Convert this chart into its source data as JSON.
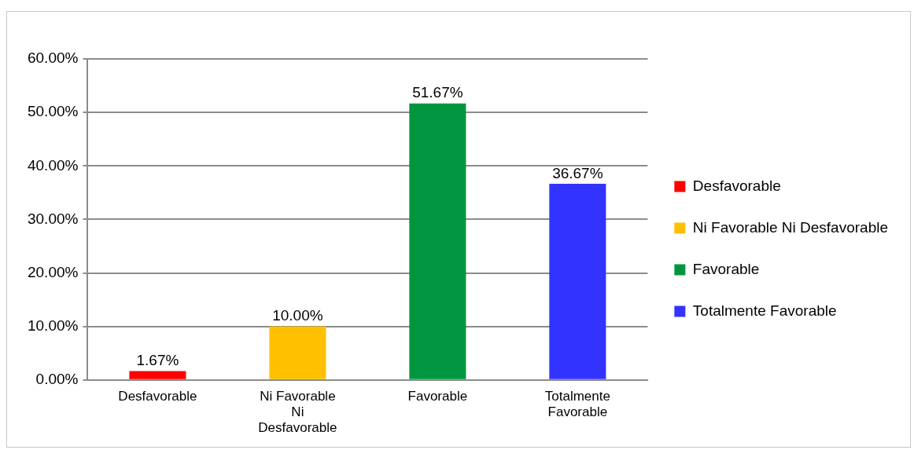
{
  "chart_data": {
    "type": "bar",
    "categories": [
      "Desfavorable",
      "Ni Favorable Ni Desfavorable",
      "Favorable",
      "Totalmente Favorable"
    ],
    "series": [
      {
        "name": "Desfavorable",
        "color": "#ff0000",
        "values": [
          1.67,
          null,
          null,
          null
        ],
        "value_labels": [
          "1.67%",
          null,
          null,
          null
        ]
      },
      {
        "name": "Ni Favorable Ni Desfavorable",
        "color": "#ffc000",
        "values": [
          null,
          10.0,
          null,
          null
        ],
        "value_labels": [
          null,
          "10.00%",
          null,
          null
        ]
      },
      {
        "name": "Favorable",
        "color": "#00963f",
        "values": [
          null,
          null,
          51.67,
          null
        ],
        "value_labels": [
          null,
          null,
          "51.67%",
          null
        ]
      },
      {
        "name": "Totalmente Favorable",
        "color": "#3333ff",
        "values": [
          null,
          null,
          null,
          36.67
        ],
        "value_labels": [
          null,
          null,
          null,
          "36.67%"
        ]
      }
    ],
    "ylim": [
      0,
      60
    ],
    "yticks": [
      {
        "value": 0,
        "label": "0.00%"
      },
      {
        "value": 10,
        "label": "10.00%"
      },
      {
        "value": 20,
        "label": "20.00%"
      },
      {
        "value": 30,
        "label": "30.00%"
      },
      {
        "value": 40,
        "label": "40.00%"
      },
      {
        "value": 50,
        "label": "50.00%"
      },
      {
        "value": 60,
        "label": "60.00%"
      }
    ],
    "grid": "y",
    "legend": "right"
  }
}
